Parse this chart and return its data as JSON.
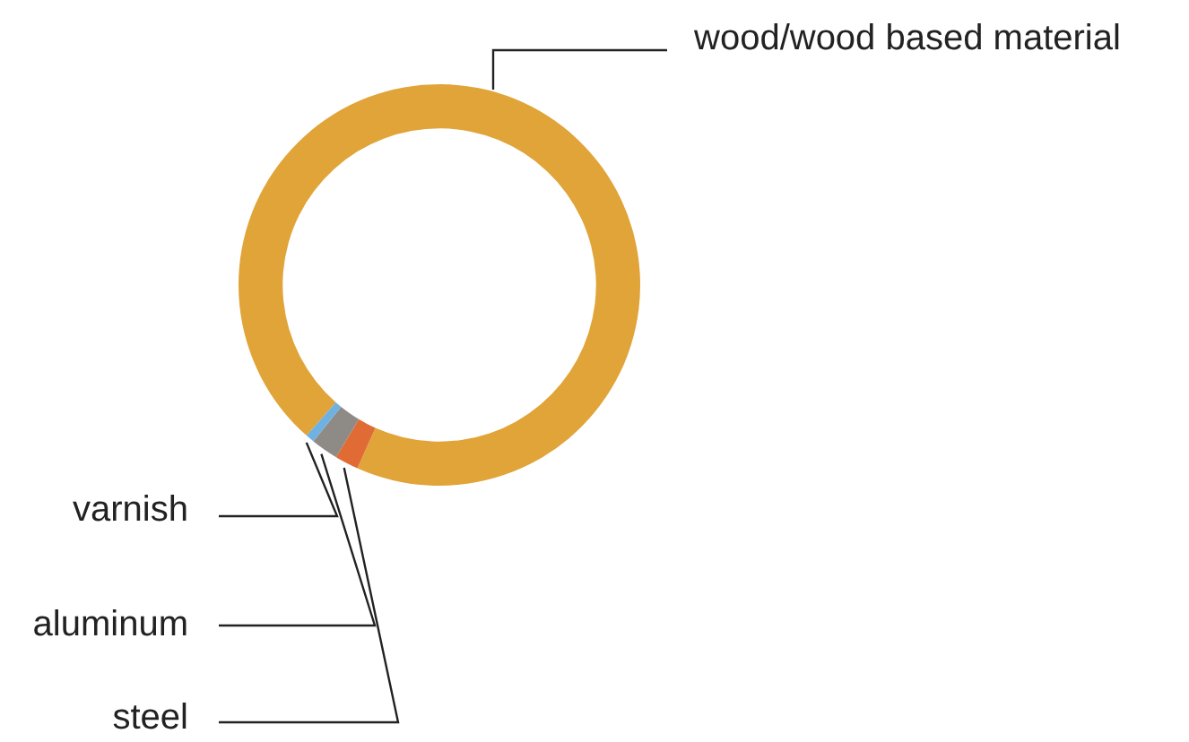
{
  "chart_data": {
    "type": "donut",
    "categories": [
      "wood/wood based material",
      "steel",
      "aluminum",
      "varnish"
    ],
    "values": [
      95.2,
      1.9,
      2.2,
      0.7
    ],
    "colors": [
      "#e0a438",
      "#e06b35",
      "#8e8a85",
      "#6fb1e0"
    ],
    "legend": false
  }
}
